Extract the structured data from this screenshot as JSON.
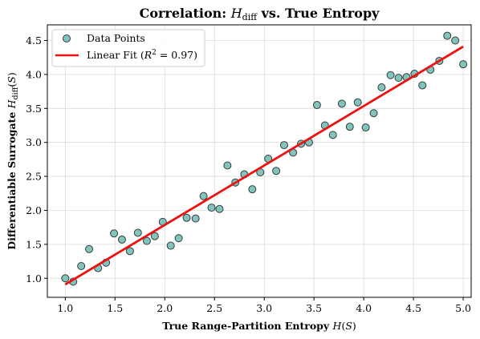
{
  "chart_data": {
    "type": "scatter",
    "title": "Correlation: H_diff vs. True Entropy",
    "xlabel": "True Range-Partition Entropy H(S)",
    "ylabel": "Differentiable Surrogate H_diff(S)",
    "xlim": [
      0.82,
      5.08
    ],
    "ylim": [
      0.72,
      4.73
    ],
    "x_ticks": [
      "1.0",
      "1.5",
      "2.0",
      "2.5",
      "3.0",
      "3.5",
      "4.0",
      "4.5",
      "5.0"
    ],
    "y_ticks": [
      "1.0",
      "1.5",
      "2.0",
      "2.5",
      "3.0",
      "3.5",
      "4.0",
      "4.5"
    ],
    "grid": true,
    "legend_position": "top-left",
    "series": [
      {
        "name": "Data Points",
        "kind": "scatter",
        "color": "#7fc4bd",
        "edge_color": "#3a3a3a",
        "points": [
          [
            1.0,
            1.0
          ],
          [
            1.08,
            0.95
          ],
          [
            1.16,
            1.18
          ],
          [
            1.24,
            1.43
          ],
          [
            1.33,
            1.15
          ],
          [
            1.41,
            1.23
          ],
          [
            1.49,
            1.66
          ],
          [
            1.57,
            1.57
          ],
          [
            1.65,
            1.4
          ],
          [
            1.73,
            1.67
          ],
          [
            1.82,
            1.55
          ],
          [
            1.9,
            1.62
          ],
          [
            1.98,
            1.83
          ],
          [
            2.06,
            1.48
          ],
          [
            2.14,
            1.59
          ],
          [
            2.22,
            1.89
          ],
          [
            2.31,
            1.88
          ],
          [
            2.39,
            2.21
          ],
          [
            2.47,
            2.04
          ],
          [
            2.55,
            2.02
          ],
          [
            2.63,
            2.66
          ],
          [
            2.71,
            2.41
          ],
          [
            2.8,
            2.53
          ],
          [
            2.88,
            2.31
          ],
          [
            2.96,
            2.56
          ],
          [
            3.04,
            2.76
          ],
          [
            3.12,
            2.58
          ],
          [
            3.2,
            2.96
          ],
          [
            3.29,
            2.85
          ],
          [
            3.37,
            2.98
          ],
          [
            3.45,
            3.0
          ],
          [
            3.53,
            3.55
          ],
          [
            3.61,
            3.25
          ],
          [
            3.69,
            3.11
          ],
          [
            3.78,
            3.57
          ],
          [
            3.86,
            3.23
          ],
          [
            3.94,
            3.59
          ],
          [
            4.02,
            3.22
          ],
          [
            4.1,
            3.43
          ],
          [
            4.18,
            3.81
          ],
          [
            4.27,
            3.99
          ],
          [
            4.35,
            3.95
          ],
          [
            4.43,
            3.96
          ],
          [
            4.51,
            4.01
          ],
          [
            4.59,
            3.84
          ],
          [
            4.67,
            4.07
          ],
          [
            4.76,
            4.2
          ],
          [
            4.84,
            4.57
          ],
          [
            4.92,
            4.5
          ],
          [
            5.0,
            4.15
          ]
        ]
      },
      {
        "name": "Linear Fit (R² = 0.97)",
        "kind": "line",
        "color": "#ee1111",
        "points": [
          [
            1.0,
            0.91
          ],
          [
            5.0,
            4.41
          ]
        ]
      }
    ]
  }
}
